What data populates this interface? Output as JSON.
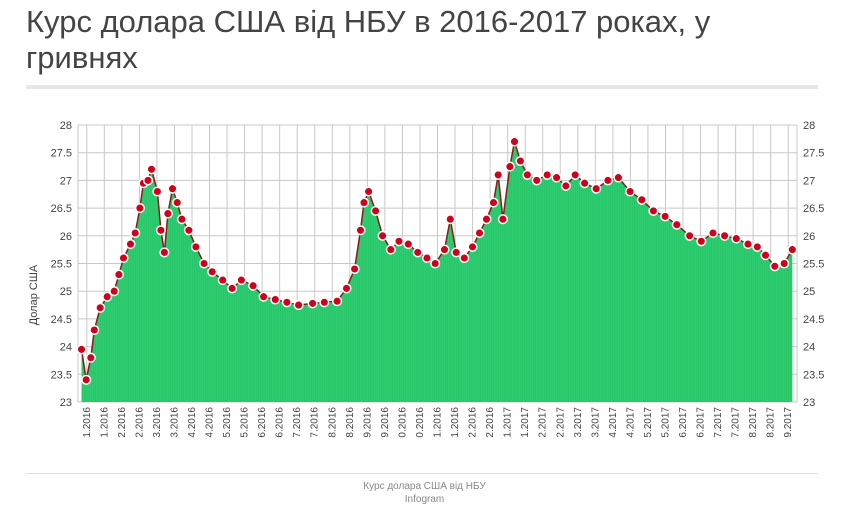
{
  "title": "Курс долара США від НБУ в 2016-2017 роках, у гривнях",
  "footer": {
    "source": "Курс долара США від НБУ",
    "credit": "Infogram"
  },
  "colors": {
    "area_fill": "#2ecc71",
    "bar_lines": "#20b85a",
    "line": "#8b1a1a",
    "marker": "#d0021b",
    "marker_stroke": "#ffffff",
    "grid": "#c8c8c8"
  },
  "chart_data": {
    "type": "area",
    "ylabel": "Долар США",
    "ylim": [
      23,
      28
    ],
    "yticks": [
      "23",
      "23.5",
      "24",
      "24.5",
      "25",
      "25.5",
      "26",
      "26.5",
      "27",
      "27.5",
      "28"
    ],
    "grid": true,
    "markers": true,
    "x_tick_labels": [
      "1.2016",
      "1.2016",
      "2.2016",
      "2.2016",
      "3.2016",
      "3.2016",
      "4.2016",
      "4.2016",
      "5.2016",
      "5.2016",
      "6.2016",
      "6.2016",
      "7.2016",
      "7.2016",
      "8.2016",
      "8.2016",
      "9.2016",
      "9.2016",
      "0.2016",
      "0.2016",
      "1.2016",
      "1.2016",
      "2.2016",
      "2.2016",
      "1.2017",
      "1.2017",
      "2.2017",
      "2.2017",
      "3.2017",
      "3.2017",
      "4.2017",
      "4.2017",
      "5.2017",
      "5.2017",
      "6.2017",
      "6.2017",
      "7.2017",
      "7.2017",
      "8.2017",
      "8.2017",
      "9.2017"
    ],
    "points": [
      [
        "2016-01-04",
        23.95
      ],
      [
        "2016-01-08",
        23.4
      ],
      [
        "2016-01-12",
        23.8
      ],
      [
        "2016-01-15",
        24.3
      ],
      [
        "2016-01-20",
        24.7
      ],
      [
        "2016-01-26",
        24.9
      ],
      [
        "2016-02-01",
        25.0
      ],
      [
        "2016-02-05",
        25.3
      ],
      [
        "2016-02-09",
        25.6
      ],
      [
        "2016-02-15",
        25.85
      ],
      [
        "2016-02-19",
        26.05
      ],
      [
        "2016-02-23",
        26.5
      ],
      [
        "2016-02-26",
        26.95
      ],
      [
        "2016-03-01",
        27.0
      ],
      [
        "2016-03-04",
        27.2
      ],
      [
        "2016-03-09",
        26.8
      ],
      [
        "2016-03-12",
        26.1
      ],
      [
        "2016-03-15",
        25.7
      ],
      [
        "2016-03-18",
        26.4
      ],
      [
        "2016-03-22",
        26.85
      ],
      [
        "2016-03-26",
        26.6
      ],
      [
        "2016-03-30",
        26.3
      ],
      [
        "2016-04-05",
        26.1
      ],
      [
        "2016-04-11",
        25.8
      ],
      [
        "2016-04-18",
        25.5
      ],
      [
        "2016-04-25",
        25.35
      ],
      [
        "2016-05-04",
        25.2
      ],
      [
        "2016-05-12",
        25.05
      ],
      [
        "2016-05-20",
        25.2
      ],
      [
        "2016-05-30",
        25.1
      ],
      [
        "2016-06-08",
        24.9
      ],
      [
        "2016-06-18",
        24.85
      ],
      [
        "2016-06-28",
        24.8
      ],
      [
        "2016-07-08",
        24.75
      ],
      [
        "2016-07-20",
        24.78
      ],
      [
        "2016-07-30",
        24.8
      ],
      [
        "2016-08-10",
        24.82
      ],
      [
        "2016-08-18",
        25.05
      ],
      [
        "2016-08-25",
        25.4
      ],
      [
        "2016-08-30",
        26.1
      ],
      [
        "2016-09-02",
        26.6
      ],
      [
        "2016-09-06",
        26.8
      ],
      [
        "2016-09-12",
        26.45
      ],
      [
        "2016-09-18",
        26.0
      ],
      [
        "2016-09-25",
        25.75
      ],
      [
        "2016-10-02",
        25.9
      ],
      [
        "2016-10-10",
        25.85
      ],
      [
        "2016-10-18",
        25.7
      ],
      [
        "2016-10-26",
        25.6
      ],
      [
        "2016-11-02",
        25.5
      ],
      [
        "2016-11-10",
        25.75
      ],
      [
        "2016-11-15",
        26.3
      ],
      [
        "2016-11-20",
        25.7
      ],
      [
        "2016-11-27",
        25.6
      ],
      [
        "2016-12-04",
        25.8
      ],
      [
        "2016-12-10",
        26.05
      ],
      [
        "2016-12-16",
        26.3
      ],
      [
        "2016-12-22",
        26.6
      ],
      [
        "2016-12-26",
        27.1
      ],
      [
        "2016-12-30",
        26.3
      ],
      [
        "2017-01-05",
        27.25
      ],
      [
        "2017-01-09",
        27.7
      ],
      [
        "2017-01-14",
        27.35
      ],
      [
        "2017-01-20",
        27.1
      ],
      [
        "2017-01-28",
        27.0
      ],
      [
        "2017-02-06",
        27.1
      ],
      [
        "2017-02-14",
        27.05
      ],
      [
        "2017-02-22",
        26.9
      ],
      [
        "2017-03-02",
        27.1
      ],
      [
        "2017-03-10",
        26.95
      ],
      [
        "2017-03-20",
        26.85
      ],
      [
        "2017-03-30",
        27.0
      ],
      [
        "2017-04-08",
        27.05
      ],
      [
        "2017-04-18",
        26.8
      ],
      [
        "2017-04-28",
        26.65
      ],
      [
        "2017-05-08",
        26.45
      ],
      [
        "2017-05-18",
        26.35
      ],
      [
        "2017-05-28",
        26.2
      ],
      [
        "2017-06-08",
        26.0
      ],
      [
        "2017-06-18",
        25.9
      ],
      [
        "2017-06-28",
        26.05
      ],
      [
        "2017-07-08",
        26.0
      ],
      [
        "2017-07-18",
        25.95
      ],
      [
        "2017-07-28",
        25.85
      ],
      [
        "2017-08-05",
        25.8
      ],
      [
        "2017-08-12",
        25.65
      ],
      [
        "2017-08-20",
        25.45
      ],
      [
        "2017-08-28",
        25.5
      ],
      [
        "2017-09-04",
        25.75
      ]
    ]
  }
}
